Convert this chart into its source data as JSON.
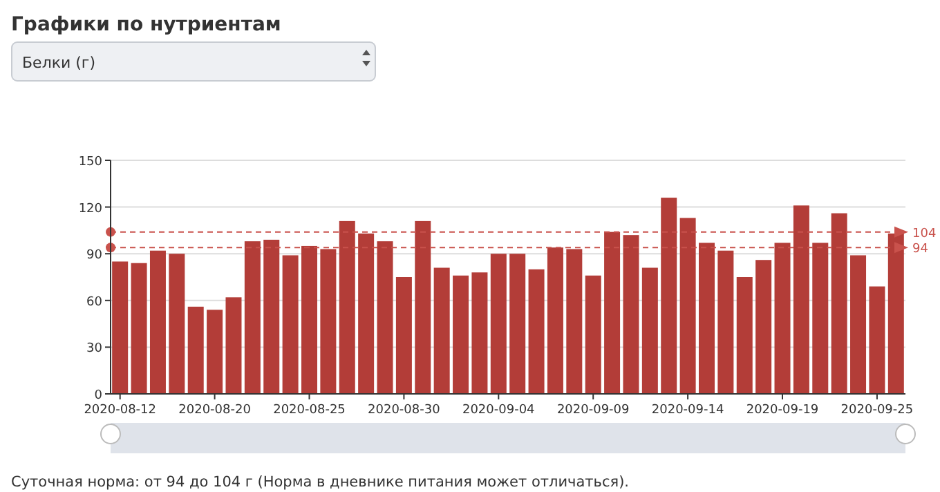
{
  "chart_data": {
    "type": "bar",
    "title": "Графики по нутриентам",
    "subtitle": "Белки (г)",
    "categories": [
      "2020-08-12",
      null,
      null,
      null,
      null,
      "2020-08-20",
      null,
      null,
      null,
      null,
      "2020-08-25",
      null,
      null,
      null,
      null,
      "2020-08-30",
      null,
      null,
      null,
      null,
      "2020-09-04",
      null,
      null,
      null,
      null,
      "2020-09-09",
      null,
      null,
      null,
      null,
      "2020-09-14",
      null,
      null,
      null,
      null,
      "2020-09-19",
      null,
      null,
      null,
      null,
      "2020-09-25",
      null
    ],
    "values": [
      85,
      84,
      92,
      90,
      56,
      54,
      62,
      98,
      99,
      89,
      95,
      93,
      111,
      103,
      98,
      75,
      111,
      81,
      76,
      78,
      90,
      90,
      80,
      94,
      93,
      76,
      104,
      102,
      81,
      126,
      113,
      97,
      92,
      75,
      86,
      97,
      121,
      97,
      116,
      89,
      69,
      103
    ],
    "color": "#b33d38",
    "ylim": [
      0,
      150
    ],
    "yticks": [
      0,
      30,
      60,
      90,
      120,
      150
    ],
    "grid": "y",
    "ref_lines": [
      {
        "axis": "y",
        "value": 104,
        "label": "104",
        "color": "#c9524c",
        "line_style": "dashed"
      },
      {
        "axis": "y",
        "value": 94,
        "label": "94",
        "color": "#c9524c",
        "line_style": "dashed"
      }
    ],
    "annotations": [
      "Суточная норма: от 94 до 104 г (Норма в дневнике питания может отличаться)."
    ]
  }
}
